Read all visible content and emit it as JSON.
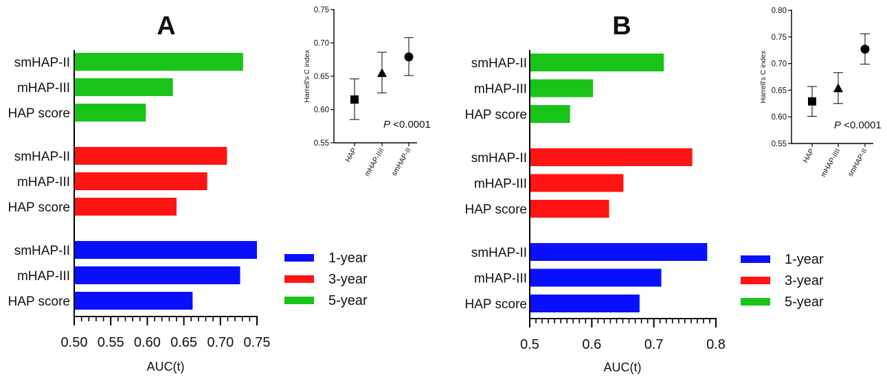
{
  "panels": [
    {
      "letter": "A",
      "bar_chart": {
        "type": "bar",
        "orientation": "horizontal",
        "xlabel": "AUC(t)",
        "xlim": [
          0.5,
          0.75
        ],
        "major_ticks": [
          0.5,
          0.55,
          0.6,
          0.65,
          0.7,
          0.75
        ],
        "tick_labels": [
          "0.50",
          "0.55",
          "0.60",
          "0.65",
          "0.70",
          "0.75"
        ],
        "minor_step": 0.01,
        "categories": [
          "smHAP-II",
          "mHAP-III",
          "HAP score"
        ],
        "series": [
          {
            "name": "5-year",
            "color": "#19c419",
            "values": [
              0.731,
              0.635,
              0.598
            ]
          },
          {
            "name": "3-year",
            "color": "#ff1414",
            "values": [
              0.709,
              0.682,
              0.64
            ]
          },
          {
            "name": "1-year",
            "color": "#0a10ff",
            "values": [
              0.75,
              0.727,
              0.662
            ]
          }
        ]
      },
      "inset": {
        "type": "scatter",
        "ylabel": "Harrell's C index",
        "ylim": [
          0.55,
          0.75
        ],
        "ticks": [
          0.55,
          0.6,
          0.65,
          0.7,
          0.75
        ],
        "tick_labels": [
          "0.55",
          "0.60",
          "0.65",
          "0.70",
          "0.75"
        ],
        "categories": [
          "HAP",
          "mHAP-IIII",
          "smHAP-II"
        ],
        "points": [
          {
            "label": "HAP",
            "marker": "square",
            "value": 0.615,
            "lower": 0.585,
            "upper": 0.646
          },
          {
            "label": "mHAP-IIII",
            "marker": "triangle",
            "value": 0.655,
            "lower": 0.625,
            "upper": 0.686
          },
          {
            "label": "smHAP-II",
            "marker": "circle",
            "value": 0.679,
            "lower": 0.651,
            "upper": 0.708
          }
        ],
        "annotation_p": "P",
        "annotation_value": " <0.0001"
      }
    },
    {
      "letter": "B",
      "bar_chart": {
        "type": "bar",
        "orientation": "horizontal",
        "xlabel": "AUC(t)",
        "xlim": [
          0.5,
          0.8
        ],
        "major_ticks": [
          0.5,
          0.6,
          0.7,
          0.8
        ],
        "tick_labels": [
          "0.5",
          "0.6",
          "0.7",
          "0.8"
        ],
        "minor_step": 0.01,
        "categories": [
          "smHAP-II",
          "mHAP-III",
          "HAP score"
        ],
        "series": [
          {
            "name": "5-year",
            "color": "#19c419",
            "values": [
              0.716,
              0.602,
              0.565
            ]
          },
          {
            "name": "3-year",
            "color": "#ff1414",
            "values": [
              0.762,
              0.651,
              0.628
            ]
          },
          {
            "name": "1-year",
            "color": "#0a10ff",
            "values": [
              0.786,
              0.712,
              0.677
            ]
          }
        ]
      },
      "inset": {
        "type": "scatter",
        "ylabel": "Harrell's C index",
        "ylim": [
          0.55,
          0.8
        ],
        "ticks": [
          0.55,
          0.6,
          0.65,
          0.7,
          0.75,
          0.8
        ],
        "tick_labels": [
          "0.55",
          "0.60",
          "0.65",
          "0.70",
          "0.75",
          "0.80"
        ],
        "categories": [
          "HAP",
          "mHAP-IIII",
          "smHAP-II"
        ],
        "points": [
          {
            "label": "HAP",
            "marker": "square",
            "value": 0.629,
            "lower": 0.601,
            "upper": 0.657
          },
          {
            "label": "mHAP-IIII",
            "marker": "triangle",
            "value": 0.654,
            "lower": 0.625,
            "upper": 0.683
          },
          {
            "label": "smHAP-II",
            "marker": "circle",
            "value": 0.727,
            "lower": 0.699,
            "upper": 0.756
          }
        ],
        "annotation_p": "P",
        "annotation_value": " <0.0001"
      }
    }
  ],
  "legend": [
    {
      "label": "1-year",
      "color": "#0a10ff"
    },
    {
      "label": "3-year",
      "color": "#ff1414"
    },
    {
      "label": "5-year",
      "color": "#19c419"
    }
  ]
}
